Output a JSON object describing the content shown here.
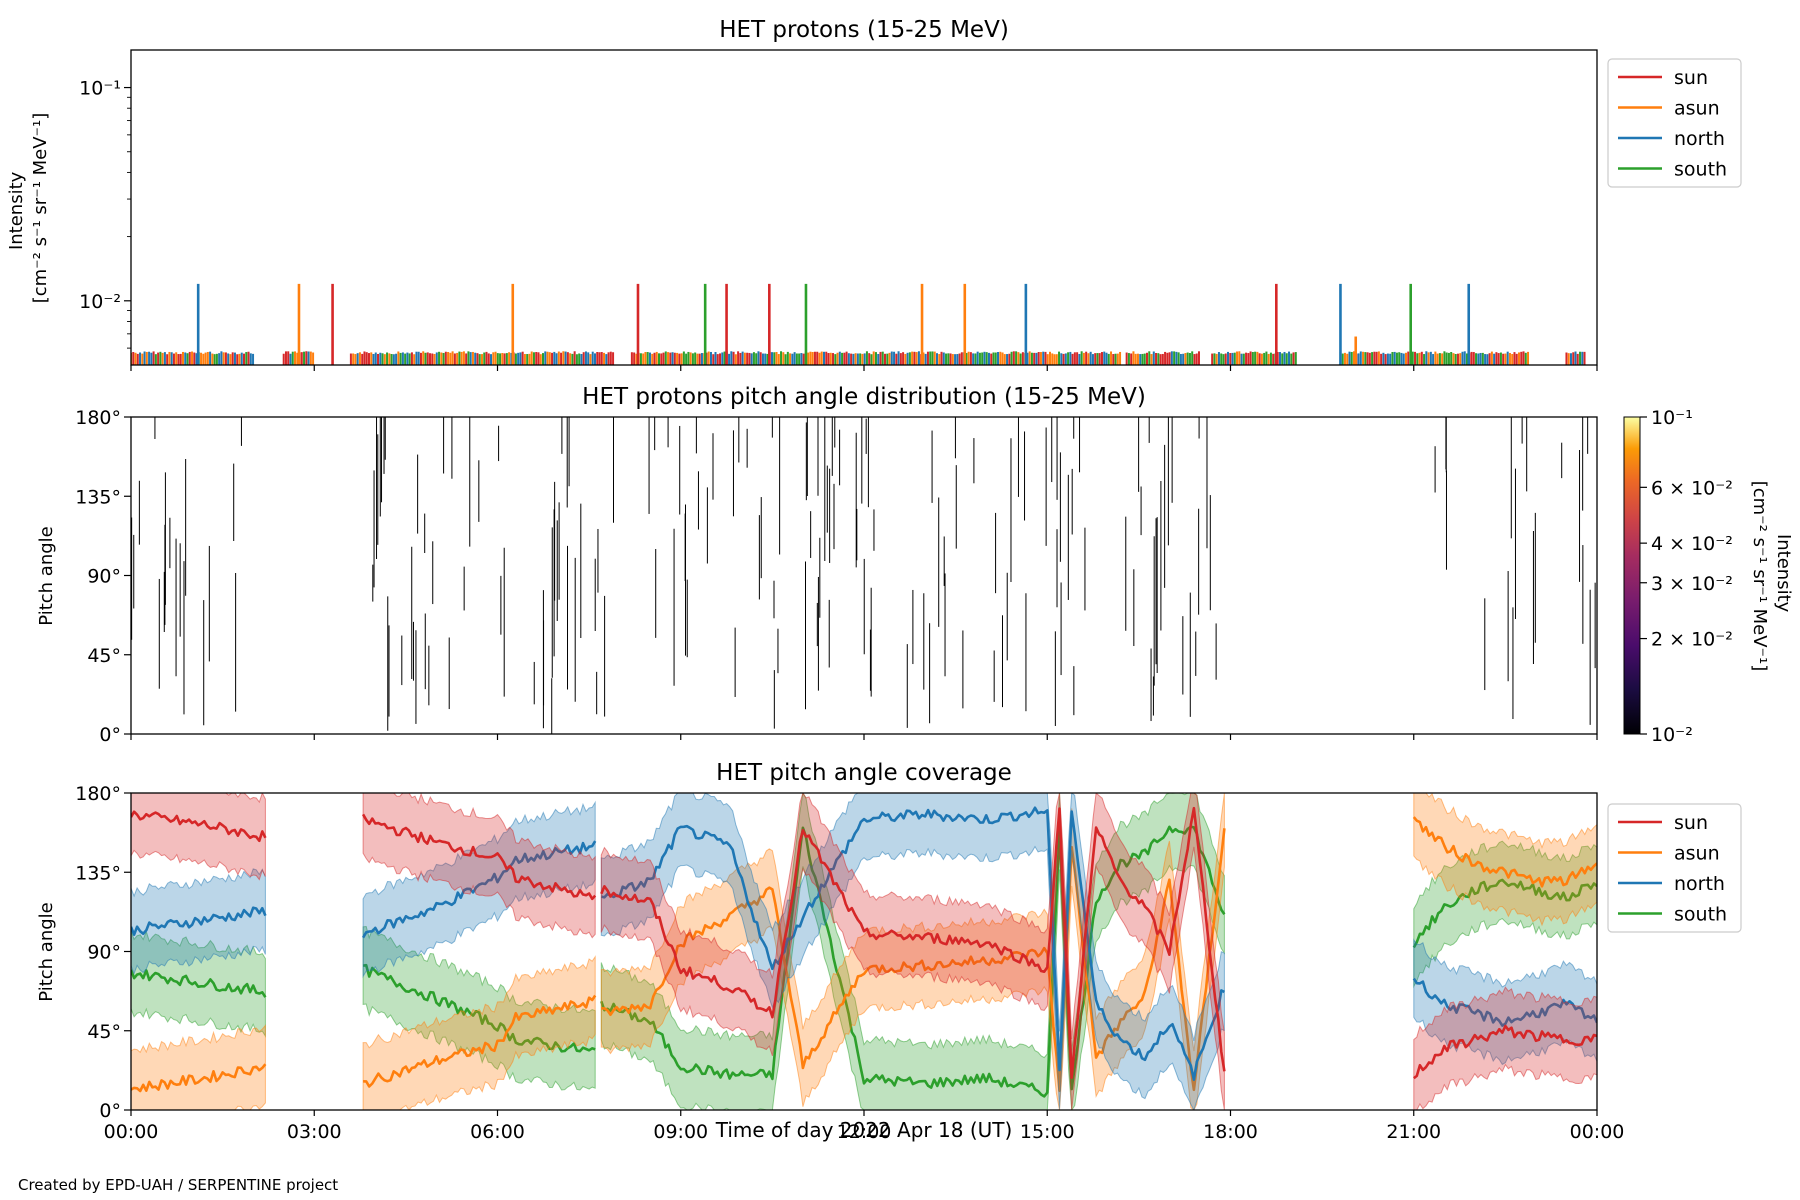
{
  "figure": {
    "credit": "Created by EPD-UAH / SERPENTINE project",
    "xlabel": "Time of day 2022 Apr 18 (UT)",
    "xticks": [
      "00:00",
      "03:00",
      "06:00",
      "09:00",
      "12:00",
      "15:00",
      "18:00",
      "21:00",
      "00:00"
    ]
  },
  "colors": {
    "sun": "#d62728",
    "asun": "#ff7f0e",
    "north": "#1f77b4",
    "south": "#2ca02c"
  },
  "chart_data": [
    {
      "type": "line",
      "title": "HET protons (15-25 MeV)",
      "ylabel_line1": "Intensity",
      "ylabel_line2": "[cm⁻² s⁻¹ sr⁻¹ MeV⁻¹]",
      "yscale": "log",
      "ylim": [
        0.005,
        0.15
      ],
      "yticks": [
        "10⁻¹",
        "10⁻²"
      ],
      "xlim_hours": [
        0,
        24
      ],
      "legend": {
        "placement": "outside-right-top",
        "entries": [
          "sun",
          "asun",
          "north",
          "south"
        ]
      },
      "baseline_value": 0.0058,
      "baseline_spans_hours": [
        [
          0,
          2.0
        ],
        [
          2.5,
          3.0
        ],
        [
          3.6,
          7.9
        ],
        [
          8.2,
          16.2
        ],
        [
          16.3,
          17.5
        ],
        [
          17.7,
          19.1
        ],
        [
          19.8,
          22.9
        ],
        [
          23.5,
          23.8
        ]
      ],
      "spikes": [
        {
          "series": "north",
          "hour": 1.1,
          "value": 0.012
        },
        {
          "series": "asun",
          "hour": 2.75,
          "value": 0.012
        },
        {
          "series": "sun",
          "hour": 3.3,
          "value": 0.012
        },
        {
          "series": "asun",
          "hour": 6.25,
          "value": 0.012
        },
        {
          "series": "sun",
          "hour": 8.3,
          "value": 0.012
        },
        {
          "series": "south",
          "hour": 9.4,
          "value": 0.012
        },
        {
          "series": "sun",
          "hour": 9.75,
          "value": 0.012
        },
        {
          "series": "sun",
          "hour": 10.45,
          "value": 0.012
        },
        {
          "series": "south",
          "hour": 11.05,
          "value": 0.012
        },
        {
          "series": "asun",
          "hour": 12.95,
          "value": 0.012
        },
        {
          "series": "asun",
          "hour": 13.65,
          "value": 0.012
        },
        {
          "series": "north",
          "hour": 14.65,
          "value": 0.012
        },
        {
          "series": "sun",
          "hour": 18.75,
          "value": 0.012
        },
        {
          "series": "north",
          "hour": 19.8,
          "value": 0.012
        },
        {
          "series": "asun",
          "hour": 20.05,
          "value": 0.0068
        },
        {
          "series": "south",
          "hour": 20.95,
          "value": 0.012
        },
        {
          "series": "north",
          "hour": 21.9,
          "value": 0.012
        }
      ]
    },
    {
      "type": "heatmap",
      "title": "HET protons pitch angle distribution (15-25 MeV)",
      "ylabel": "Pitch angle",
      "ylim": [
        0,
        180
      ],
      "yticks": [
        "0°",
        "45°",
        "90°",
        "135°",
        "180°"
      ],
      "xlim_hours": [
        0,
        24
      ],
      "colorbar": {
        "label_line1": "Intensity",
        "label_line2": "[cm⁻² s⁻¹ sr⁻¹ MeV⁻¹]",
        "scale": "log",
        "range": [
          0.01,
          0.1
        ],
        "ticks": [
          "10⁻¹",
          "6 × 10⁻²",
          "4 × 10⁻²",
          "3 × 10⁻²",
          "2 × 10⁻²",
          "10⁻²"
        ],
        "colormap": "inferno"
      },
      "coverage_spans_hours": [
        [
          0,
          2.05
        ],
        [
          3.85,
          7.9
        ],
        [
          8.1,
          17.9
        ],
        [
          21.0,
          24.0
        ]
      ],
      "segment_count": 190,
      "segment_color": "#000000"
    },
    {
      "type": "area",
      "title": "HET pitch angle coverage",
      "ylabel": "Pitch angle",
      "ylim": [
        0,
        180
      ],
      "yticks": [
        "0°",
        "45°",
        "90°",
        "135°",
        "180°"
      ],
      "xlim_hours": [
        0,
        24
      ],
      "legend": {
        "placement": "outside-right-top",
        "entries": [
          "sun",
          "asun",
          "north",
          "south"
        ]
      },
      "band_half_width_deg": 22,
      "segments": [
        {
          "hours": [
            0.0,
            1.2,
            2.2
          ],
          "series": {
            "sun": [
              168,
              162,
              155
            ],
            "asun": [
              12,
              18,
              25
            ],
            "north": [
              102,
              108,
              113
            ],
            "south": [
              78,
              72,
              67
            ]
          }
        },
        {
          "hours": [
            3.8,
            5.0,
            6.0,
            6.3,
            7.6
          ],
          "series": {
            "sun": [
              165,
              152,
              143,
              132,
              120
            ],
            "asun": [
              15,
              28,
              37,
              52,
              62
            ],
            "north": [
              100,
              115,
              132,
              142,
              150
            ],
            "south": [
              80,
              63,
              48,
              40,
              33
            ]
          }
        },
        {
          "hours": [
            7.7,
            8.5,
            9.0,
            9.8,
            10.5,
            11.0,
            12.0,
            13.0,
            14.0,
            15.0,
            15.2,
            15.4,
            15.8,
            16.2,
            16.6,
            17.0,
            17.4,
            17.9
          ],
          "series": {
            "sun": [
              125,
              118,
              80,
              70,
              55,
              160,
              100,
              98,
              95,
              80,
              170,
              20,
              160,
              130,
              115,
              90,
              170,
              20
            ],
            "asun": [
              55,
              60,
              95,
              110,
              125,
              25,
              80,
              82,
              85,
              90,
              10,
              150,
              30,
              50,
              65,
              130,
              10,
              160
            ],
            "north": [
              120,
              130,
              160,
              150,
              80,
              110,
              165,
              168,
              165,
              170,
              20,
              170,
              60,
              40,
              30,
              50,
              20,
              70
            ],
            "south": [
              60,
              50,
              25,
              20,
              20,
              160,
              18,
              15,
              18,
              10,
              160,
              10,
              120,
              140,
              145,
              160,
              160,
              110
            ]
          }
        },
        {
          "hours": [
            21.0,
            21.5,
            22.0,
            22.5,
            23.0,
            23.5,
            24.0
          ],
          "series": {
            "sun": [
              20,
              35,
              40,
              45,
              42,
              40,
              40
            ],
            "asun": [
              165,
              150,
              140,
              135,
              130,
              130,
              140
            ],
            "north": [
              75,
              60,
              55,
              50,
              55,
              60,
              50
            ],
            "south": [
              95,
              115,
              125,
              130,
              125,
              120,
              130
            ]
          }
        }
      ]
    }
  ]
}
